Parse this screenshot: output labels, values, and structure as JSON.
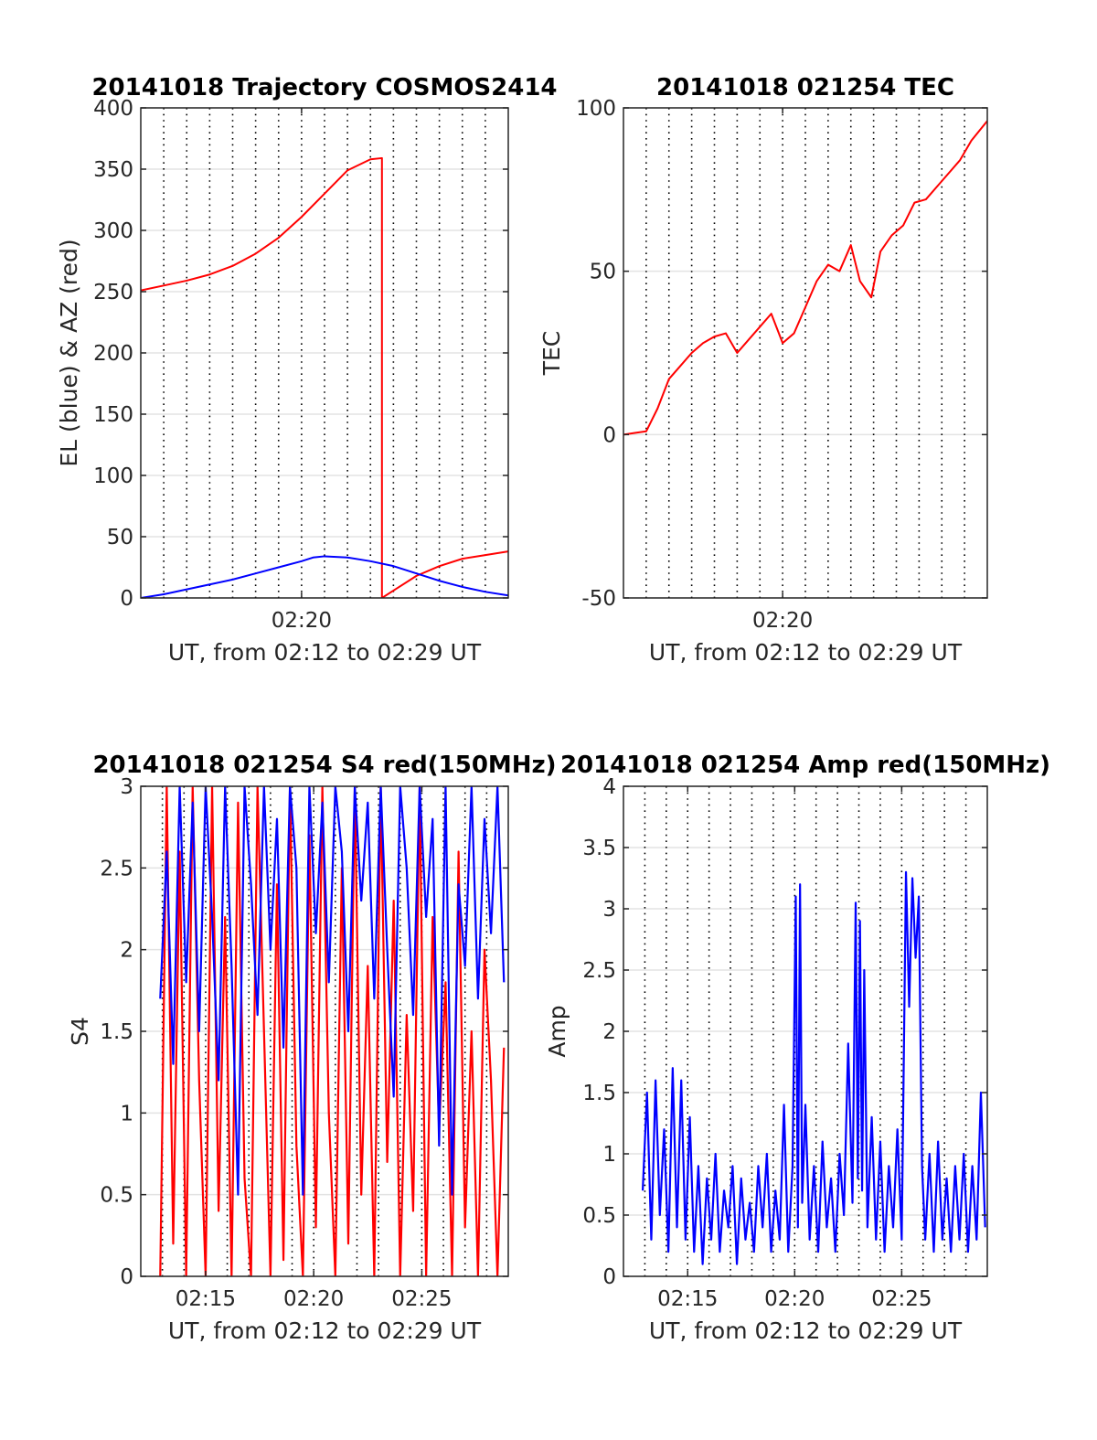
{
  "chart_data": [
    {
      "id": "traj",
      "type": "line",
      "title": "20141018 Trajectory COSMOS2414",
      "xlabel": "UT, from 02:12 to 02:29 UT",
      "ylabel": "EL (blue) & AZ (red)",
      "xlim": [
        13.0,
        29.0
      ],
      "ylim": [
        0,
        400
      ],
      "yticks": [
        0,
        50,
        100,
        150,
        200,
        250,
        300,
        350,
        400
      ],
      "xticks": [
        {
          "value": 20,
          "label": "02:20"
        }
      ],
      "grid_y": true,
      "vertical_dotted_lines_every_min": 1,
      "series": [
        {
          "color": "#ff0000",
          "x": [
            13.0,
            14.0,
            15.0,
            16.0,
            17.0,
            18.0,
            19.0,
            20.0,
            21.0,
            22.0,
            23.0,
            23.5,
            23.5,
            24.0,
            25.0,
            26.0,
            27.0,
            28.0,
            29.0
          ],
          "y": [
            251,
            255,
            259,
            264,
            271,
            281,
            294,
            311,
            330,
            349,
            358,
            359,
            0,
            6,
            18,
            26,
            32,
            35,
            38
          ]
        },
        {
          "color": "#0000ff",
          "x": [
            13.0,
            14.0,
            15.0,
            16.0,
            17.0,
            18.0,
            19.0,
            20.0,
            20.5,
            21.0,
            22.0,
            23.0,
            24.0,
            25.0,
            26.0,
            27.0,
            28.0,
            29.0
          ],
          "y": [
            0,
            3,
            7,
            11,
            15,
            20,
            25,
            30,
            33,
            34,
            33,
            30,
            26,
            20,
            14,
            9,
            5,
            2
          ]
        }
      ]
    },
    {
      "id": "tec",
      "type": "line",
      "title": "20141018 021254 TEC",
      "xlabel": "UT, from 02:12 to 02:29 UT",
      "ylabel": "TEC",
      "xlim": [
        13.0,
        29.0
      ],
      "ylim": [
        -50,
        100
      ],
      "yticks": [
        -50,
        0,
        50,
        100
      ],
      "xticks": [
        {
          "value": 20,
          "label": "02:20"
        }
      ],
      "grid_y": true,
      "vertical_dotted_lines_every_min": 1,
      "series": [
        {
          "color": "#ff0000",
          "x": [
            13.0,
            13.5,
            14.0,
            14.5,
            15.0,
            15.5,
            16.0,
            16.5,
            17.0,
            17.5,
            18.0,
            18.5,
            19.0,
            19.5,
            20.0,
            20.5,
            21.0,
            21.5,
            22.0,
            22.5,
            23.0,
            23.4,
            23.9,
            24.3,
            24.8,
            25.3,
            25.8,
            26.3,
            26.8,
            27.3,
            27.8,
            28.3,
            29.0
          ],
          "y": [
            0,
            0.5,
            1,
            8,
            17,
            21,
            25,
            28,
            30,
            31,
            25,
            29,
            33,
            37,
            28,
            31,
            39,
            47,
            52,
            50,
            58,
            47,
            42,
            56,
            61,
            64,
            71,
            72,
            76,
            80,
            84,
            90,
            96
          ]
        }
      ]
    },
    {
      "id": "s4",
      "type": "line",
      "title": "20141018 021254 S4 red(150MHz)",
      "xlabel": "UT, from 02:12 to 02:29 UT",
      "ylabel": "S4",
      "xlim": [
        12.0,
        29.0
      ],
      "ylim": [
        0,
        3
      ],
      "yticks": [
        0,
        0.5,
        1,
        1.5,
        2,
        2.5,
        3
      ],
      "xticks": [
        {
          "value": 15,
          "label": "02:15"
        },
        {
          "value": 20,
          "label": "02:20"
        },
        {
          "value": 25,
          "label": "02:25"
        }
      ],
      "grid_y": true,
      "vertical_dotted_lines_every_min": 1,
      "series": [
        {
          "color": "#ff0000",
          "x": [
            12.9,
            13.2,
            13.5,
            13.8,
            14.1,
            14.4,
            14.7,
            15.0,
            15.3,
            15.6,
            15.9,
            16.2,
            16.5,
            16.8,
            17.1,
            17.4,
            17.7,
            18.0,
            18.3,
            18.6,
            18.9,
            19.2,
            19.5,
            19.8,
            20.1,
            20.4,
            20.7,
            21.0,
            21.3,
            21.6,
            21.9,
            22.2,
            22.5,
            22.8,
            23.1,
            23.4,
            23.7,
            24.0,
            24.3,
            24.6,
            24.9,
            25.2,
            25.5,
            25.8,
            26.1,
            26.4,
            26.7,
            27.0,
            27.3,
            27.6,
            27.9,
            28.2,
            28.5,
            28.8
          ],
          "y": [
            0,
            3,
            0.2,
            2.6,
            0,
            3,
            1.2,
            0,
            3,
            0.4,
            2.2,
            0,
            2.9,
            0.6,
            0,
            3,
            1.5,
            0,
            2.4,
            0.1,
            3,
            0.8,
            0,
            2.7,
            0.3,
            3,
            1.0,
            0,
            2.5,
            0.2,
            3,
            0.5,
            1.9,
            0,
            3,
            0.7,
            2.3,
            0,
            1.6,
            0.4,
            3,
            0,
            2.2,
            0.9,
            1.8,
            0,
            2.6,
            0.3,
            1.5,
            0,
            2.0,
            1.2,
            0,
            1.4
          ]
        },
        {
          "color": "#0000ff",
          "x": [
            12.9,
            13.2,
            13.5,
            13.8,
            14.1,
            14.4,
            14.7,
            15.0,
            15.3,
            15.6,
            15.9,
            16.2,
            16.5,
            16.8,
            17.1,
            17.4,
            17.7,
            18.0,
            18.3,
            18.6,
            18.9,
            19.2,
            19.5,
            19.8,
            20.1,
            20.4,
            20.7,
            21.0,
            21.3,
            21.6,
            21.9,
            22.2,
            22.5,
            22.8,
            23.1,
            23.4,
            23.7,
            24.0,
            24.3,
            24.6,
            24.9,
            25.2,
            25.5,
            25.8,
            26.1,
            26.4,
            26.7,
            27.0,
            27.3,
            27.6,
            27.9,
            28.2,
            28.5,
            28.8
          ],
          "y": [
            1.7,
            2.6,
            1.3,
            3,
            1.8,
            2.9,
            1.5,
            3,
            2.2,
            1.2,
            3,
            1.9,
            0.5,
            3,
            2.4,
            1.6,
            3,
            2.0,
            2.8,
            1.4,
            3,
            2.5,
            0.5,
            3,
            2.1,
            2.9,
            1.8,
            3,
            2.6,
            1.5,
            3,
            2.3,
            2.9,
            1.7,
            3,
            2.0,
            1.1,
            3,
            2.5,
            1.6,
            3,
            2.2,
            2.8,
            0.8,
            3,
            0.5,
            2.4,
            1.9,
            3,
            1.7,
            2.8,
            2.1,
            3,
            1.8
          ]
        }
      ]
    },
    {
      "id": "amp",
      "type": "line",
      "title": "20141018 021254 Amp red(150MHz)",
      "xlabel": "UT, from 02:12 to 02:29 UT",
      "ylabel": "Amp",
      "xlim": [
        12.0,
        29.0
      ],
      "ylim": [
        0,
        4
      ],
      "yticks": [
        0,
        0.5,
        1,
        1.5,
        2,
        2.5,
        3,
        3.5,
        4
      ],
      "xticks": [
        {
          "value": 15,
          "label": "02:15"
        },
        {
          "value": 20,
          "label": "02:20"
        },
        {
          "value": 25,
          "label": "02:25"
        }
      ],
      "grid_y": true,
      "vertical_dotted_lines_every_min": 1,
      "series": [
        {
          "color": "#0000ff",
          "x": [
            12.9,
            13.1,
            13.3,
            13.5,
            13.7,
            13.9,
            14.1,
            14.3,
            14.5,
            14.7,
            14.9,
            15.1,
            15.3,
            15.5,
            15.7,
            15.9,
            16.1,
            16.3,
            16.5,
            16.7,
            16.9,
            17.1,
            17.3,
            17.5,
            17.7,
            17.9,
            18.1,
            18.3,
            18.5,
            18.7,
            18.9,
            19.1,
            19.3,
            19.5,
            19.7,
            19.9,
            20.05,
            20.15,
            20.25,
            20.35,
            20.5,
            20.7,
            20.9,
            21.1,
            21.3,
            21.5,
            21.7,
            21.9,
            22.1,
            22.3,
            22.5,
            22.7,
            22.85,
            22.95,
            23.05,
            23.15,
            23.25,
            23.4,
            23.6,
            23.8,
            24.0,
            24.2,
            24.4,
            24.6,
            24.8,
            25.0,
            25.2,
            25.35,
            25.5,
            25.65,
            25.8,
            25.95,
            26.1,
            26.3,
            26.5,
            26.7,
            26.9,
            27.1,
            27.3,
            27.5,
            27.7,
            27.9,
            28.1,
            28.3,
            28.5,
            28.7,
            28.9
          ],
          "y": [
            0.7,
            1.5,
            0.3,
            1.6,
            0.5,
            1.2,
            0.2,
            1.7,
            0.4,
            1.6,
            0.3,
            1.3,
            0.2,
            0.9,
            0.1,
            0.8,
            0.3,
            1.0,
            0.2,
            0.7,
            0.4,
            0.9,
            0.1,
            0.8,
            0.3,
            0.6,
            0.2,
            0.9,
            0.4,
            1.0,
            0.2,
            0.7,
            0.3,
            1.4,
            0.2,
            0.9,
            3.1,
            0.4,
            3.2,
            0.6,
            1.4,
            0.3,
            0.9,
            0.2,
            1.1,
            0.4,
            0.8,
            0.2,
            1.0,
            0.5,
            1.9,
            0.6,
            3.05,
            0.8,
            2.9,
            0.7,
            2.5,
            0.4,
            1.3,
            0.3,
            1.1,
            0.2,
            0.9,
            0.4,
            1.2,
            0.3,
            3.3,
            2.2,
            3.25,
            2.6,
            3.1,
            0.9,
            0.3,
            1.0,
            0.2,
            1.1,
            0.3,
            0.8,
            0.2,
            0.9,
            0.3,
            1.0,
            0.2,
            0.9,
            0.3,
            1.5,
            0.4
          ]
        }
      ]
    }
  ]
}
